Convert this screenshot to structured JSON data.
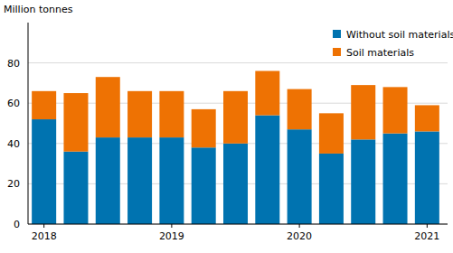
{
  "chart_data": {
    "type": "bar",
    "stacked": true,
    "y_label": "Million tonnes",
    "categories": [
      "2018",
      null,
      null,
      null,
      "2019",
      null,
      null,
      null,
      "2020",
      null,
      null,
      null,
      "2021"
    ],
    "series": [
      {
        "name": "Without soil materials",
        "color": "#0073b0",
        "values": [
          52,
          36,
          43,
          43,
          43,
          38,
          40,
          54,
          47,
          35,
          42,
          45,
          46
        ]
      },
      {
        "name": "Soil materials",
        "color": "#ee7203",
        "values": [
          14,
          29,
          30,
          23,
          23,
          19,
          26,
          22,
          20,
          20,
          27,
          23,
          13
        ]
      }
    ],
    "ylim": [
      0,
      100
    ],
    "yticks": [
      0,
      20,
      40,
      60,
      80
    ],
    "grid": true,
    "legend": "top-right"
  }
}
